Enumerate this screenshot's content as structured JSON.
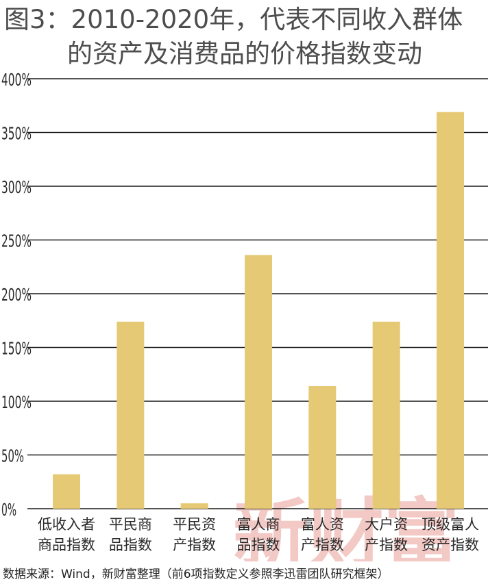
{
  "title_line1": "图3：2010-2020年，代表不同收入群体",
  "title_line2": "的资产及消费品的价格指数变动",
  "watermark": "新财富",
  "source": "数据来源：Wind，新财富整理（前6项指数定义参照李迅雷团队研究框架）",
  "colors": {
    "bar": "#e6c975",
    "grid": "#1a1a1a",
    "watermark": "#f2c9c5"
  },
  "chart_data": {
    "type": "bar",
    "categories": [
      [
        "低收入者",
        "商品指数"
      ],
      [
        "平民商",
        "品指数"
      ],
      [
        "平民资",
        "产指数"
      ],
      [
        "富人商",
        "品指数"
      ],
      [
        "富人资",
        "产指数"
      ],
      [
        "大户资",
        "产指数"
      ],
      [
        "顶级富人",
        "资产指数"
      ]
    ],
    "values": [
      32,
      174,
      5,
      236,
      114,
      174,
      369
    ],
    "ylim": [
      0,
      400
    ],
    "yticks": [
      0,
      50,
      100,
      150,
      200,
      250,
      300,
      350,
      400
    ],
    "ytick_labels": [
      "0%",
      "50%",
      "100%",
      "150%",
      "200%",
      "250%",
      "300%",
      "350%",
      "400%"
    ],
    "grid": true
  }
}
